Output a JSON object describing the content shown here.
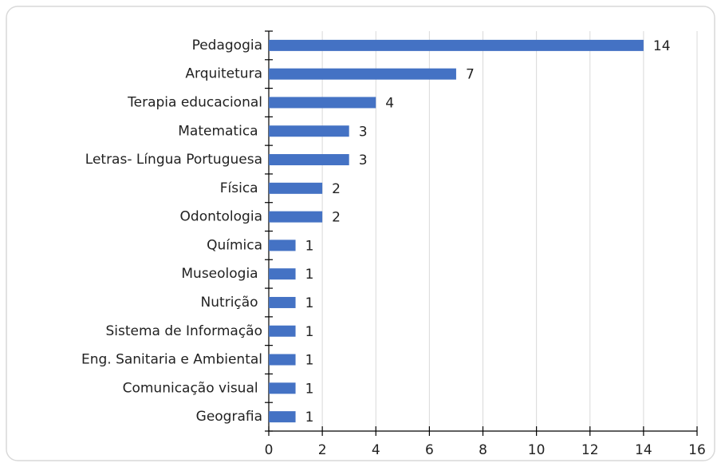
{
  "chart_data": {
    "type": "bar",
    "orientation": "horizontal",
    "categories": [
      "Pedagogia",
      "Arquitetura",
      "Terapia educacional",
      "Matematica ",
      "Letras- Língua Portuguesa",
      "Física ",
      "Odontologia",
      "Química",
      "Museologia ",
      "Nutrição ",
      "Sistema de Informação",
      "Eng. Sanitaria e Ambiental",
      "Comunicação visual ",
      "Geografia"
    ],
    "values": [
      14,
      7,
      4,
      3,
      3,
      2,
      2,
      1,
      1,
      1,
      1,
      1,
      1,
      1
    ],
    "color": "#4472c4",
    "xlim": [
      0,
      16
    ],
    "xticks": [
      0,
      2,
      4,
      6,
      8,
      10,
      12,
      14,
      16
    ],
    "grid": true
  }
}
